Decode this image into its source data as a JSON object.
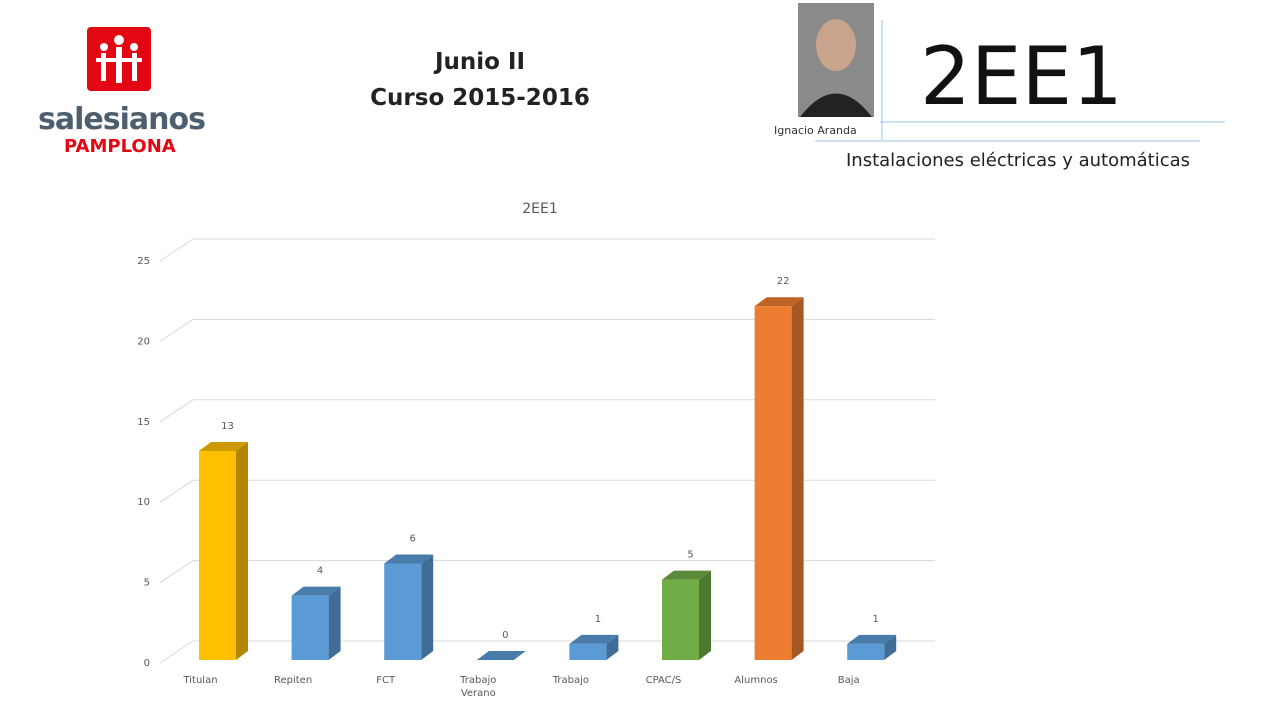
{
  "header": {
    "title_line1": "Junio II",
    "title_line2": "Curso 2015-2016",
    "code": "2EE1",
    "teacher": "Ignacio Aranda",
    "subject": "Instalaciones eléctricas y automáticas",
    "logo_name": "salesianos",
    "logo_city": "PAMPLONA"
  },
  "chart_data": {
    "type": "bar3d",
    "title": "2EE1",
    "categories": [
      "Titulan",
      "Repiten",
      "FCT",
      "Trabajo Verano",
      "Trabajo",
      "CPAC/S",
      "Alumnos",
      "Baja"
    ],
    "values": [
      13,
      4,
      6,
      0,
      1,
      5,
      22,
      1
    ],
    "colors": [
      "#ffc000",
      "#5b9bd5",
      "#5b9bd5",
      "#5b9bd5",
      "#5b9bd5",
      "#70ad47",
      "#ed7d31",
      "#5b9bd5"
    ],
    "ylim": [
      0,
      25
    ],
    "yticks": [
      0,
      5,
      10,
      15,
      20,
      25
    ],
    "grid": true
  }
}
